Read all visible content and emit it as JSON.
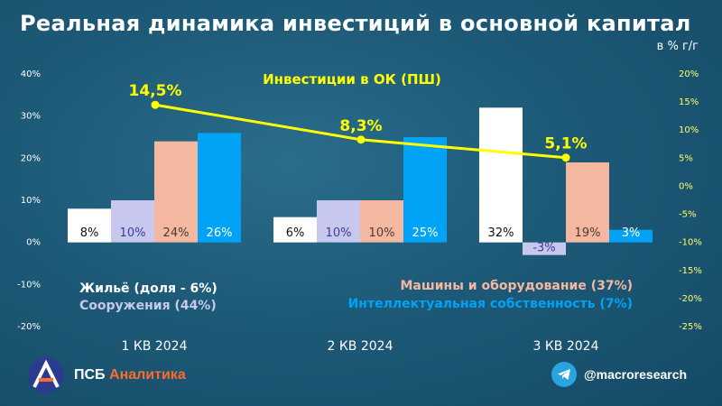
{
  "title": "Реальная динамика инвестиций в основной капитал",
  "unit_label": "в % г/г",
  "chart_data": {
    "type": "bar",
    "categories": [
      "1 КВ 2024",
      "2 КВ 2024",
      "3 КВ 2024"
    ],
    "series": [
      {
        "name": "Жильё (доля - 6%)",
        "values": [
          8,
          6,
          32
        ],
        "labels": [
          "8%",
          "6%",
          "32%"
        ],
        "color": "#ffffff",
        "label_color": "#111111"
      },
      {
        "name": "Сооружения (44%)",
        "values": [
          10,
          10,
          -3
        ],
        "labels": [
          "10%",
          "10%",
          "-3%"
        ],
        "color": "#c8c8ee",
        "label_color": "#3b3b9a"
      },
      {
        "name": "Машины и оборудование (37%)",
        "values": [
          24,
          10,
          19
        ],
        "labels": [
          "24%",
          "10%",
          "19%"
        ],
        "color": "#f4b8a0",
        "label_color": "#4a3a35"
      },
      {
        "name": "Интеллектуальная собственность (7%)",
        "values": [
          26,
          25,
          3
        ],
        "labels": [
          "26%",
          "25%",
          "3%"
        ],
        "color": "#00a3f5",
        "label_color": "#ffffff"
      }
    ],
    "line": {
      "name": "Инвестиции в ОК (ПШ)",
      "values": [
        14.5,
        8.3,
        5.1
      ],
      "labels": [
        "14,5%",
        "8,3%",
        "5,1%"
      ],
      "color": "#ffff00"
    },
    "y_left": {
      "ylim": [
        -20,
        40
      ],
      "ticks": [
        "40%",
        "30%",
        "20%",
        "10%",
        "0%",
        "-10%",
        "-20%"
      ],
      "tick_values": [
        40,
        30,
        20,
        10,
        0,
        -10,
        -20
      ]
    },
    "y_right": {
      "ylim": [
        -25,
        20
      ],
      "ticks": [
        "20%",
        "15%",
        "10%",
        "5%",
        "0%",
        "-5%",
        "-10%",
        "-15%",
        "-20%",
        "-25%"
      ],
      "tick_values": [
        20,
        15,
        10,
        5,
        0,
        -5,
        -10,
        -15,
        -20,
        -25
      ],
      "color": "#ffff66"
    },
    "grid": false
  },
  "legend": {
    "housing": "Жильё (доля - 6%)",
    "structures": "Сооружения (44%)",
    "machinery": "Машины и оборудование (37%)",
    "ip": "Интеллектуальная собственность (7%)",
    "line_title": "Инвестиции в ОК (ПШ)"
  },
  "footer": {
    "brand_main": "ПСБ",
    "brand_accent": "Аналитика",
    "telegram_handle": "@macroresearch"
  }
}
